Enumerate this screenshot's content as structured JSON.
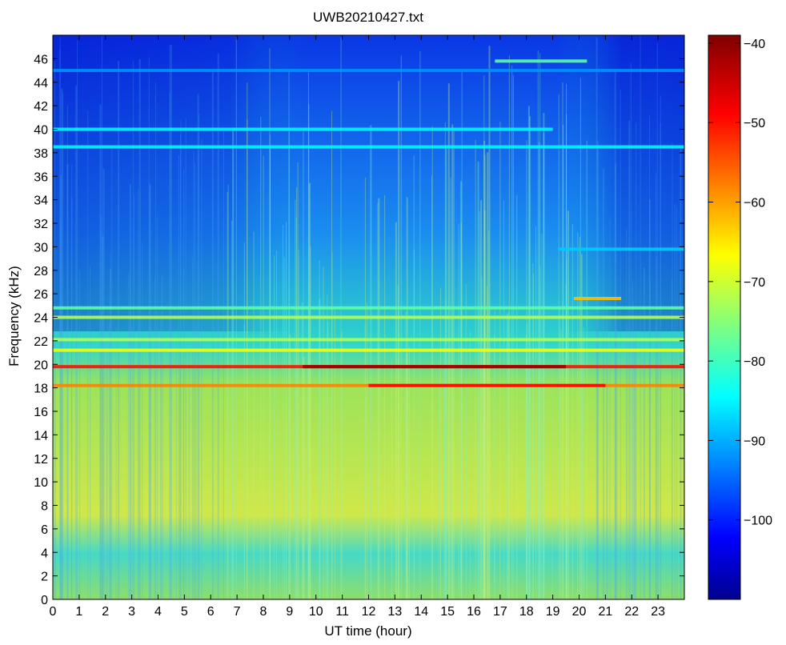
{
  "chart_data": {
    "type": "heatmap",
    "title": "UWB20210427.txt",
    "xlabel": "UT time (hour)",
    "ylabel": "Frequency (kHz)",
    "xlim": [
      0,
      24
    ],
    "ylim": [
      0,
      48
    ],
    "x_ticks": [
      0,
      1,
      2,
      3,
      4,
      5,
      6,
      7,
      8,
      9,
      10,
      11,
      12,
      13,
      14,
      15,
      16,
      17,
      18,
      19,
      20,
      21,
      22,
      23
    ],
    "y_ticks": [
      0,
      2,
      4,
      6,
      8,
      10,
      12,
      14,
      16,
      18,
      20,
      22,
      24,
      26,
      28,
      30,
      32,
      34,
      36,
      38,
      40,
      42,
      44,
      46
    ],
    "colorbar": {
      "range": [
        -110,
        -39
      ],
      "ticks": [
        -40,
        -50,
        -60,
        -70,
        -80,
        -90,
        -100
      ],
      "tick_labels": [
        "−40",
        "−50",
        "−60",
        "−70",
        "−80",
        "−90",
        "−100"
      ],
      "colormap": "jet"
    },
    "features": [
      {
        "kind": "band",
        "freq_khz": 19.8,
        "t_start": 0,
        "t_end": 24,
        "level_db": -50,
        "peak_t": [
          9.5,
          19.5
        ]
      },
      {
        "kind": "band",
        "freq_khz": 18.2,
        "t_start": 0,
        "t_end": 24,
        "level_db": -58,
        "peak_t": [
          12,
          21
        ]
      },
      {
        "kind": "band",
        "freq_khz": 21.2,
        "t_start": 0,
        "t_end": 24,
        "level_db": -68
      },
      {
        "kind": "band",
        "freq_khz": 22.1,
        "t_start": 0,
        "t_end": 24,
        "level_db": -72
      },
      {
        "kind": "band",
        "freq_khz": 24.0,
        "t_start": 0,
        "t_end": 24,
        "level_db": -72
      },
      {
        "kind": "band",
        "freq_khz": 24.8,
        "t_start": 0,
        "t_end": 24,
        "level_db": -78
      },
      {
        "kind": "band",
        "freq_khz": 38.5,
        "t_start": 0,
        "t_end": 24,
        "level_db": -85
      },
      {
        "kind": "band",
        "freq_khz": 40.0,
        "t_start": 0,
        "t_end": 19,
        "level_db": -85
      },
      {
        "kind": "band",
        "freq_khz": 45.0,
        "t_start": 0,
        "t_end": 24,
        "level_db": -92
      },
      {
        "kind": "band",
        "freq_khz": 45.8,
        "t_start": 16.8,
        "t_end": 20.3,
        "level_db": -78
      },
      {
        "kind": "band",
        "freq_khz": 25.6,
        "t_start": 19.8,
        "t_end": 21.6,
        "level_db": -62
      },
      {
        "kind": "band",
        "freq_khz": 29.8,
        "t_start": 19.2,
        "t_end": 24,
        "level_db": -88
      }
    ]
  },
  "colors": {
    "jet_stops": [
      "#00008f",
      "#0000ff",
      "#00ffff",
      "#ffff00",
      "#ff0000",
      "#800000"
    ]
  }
}
